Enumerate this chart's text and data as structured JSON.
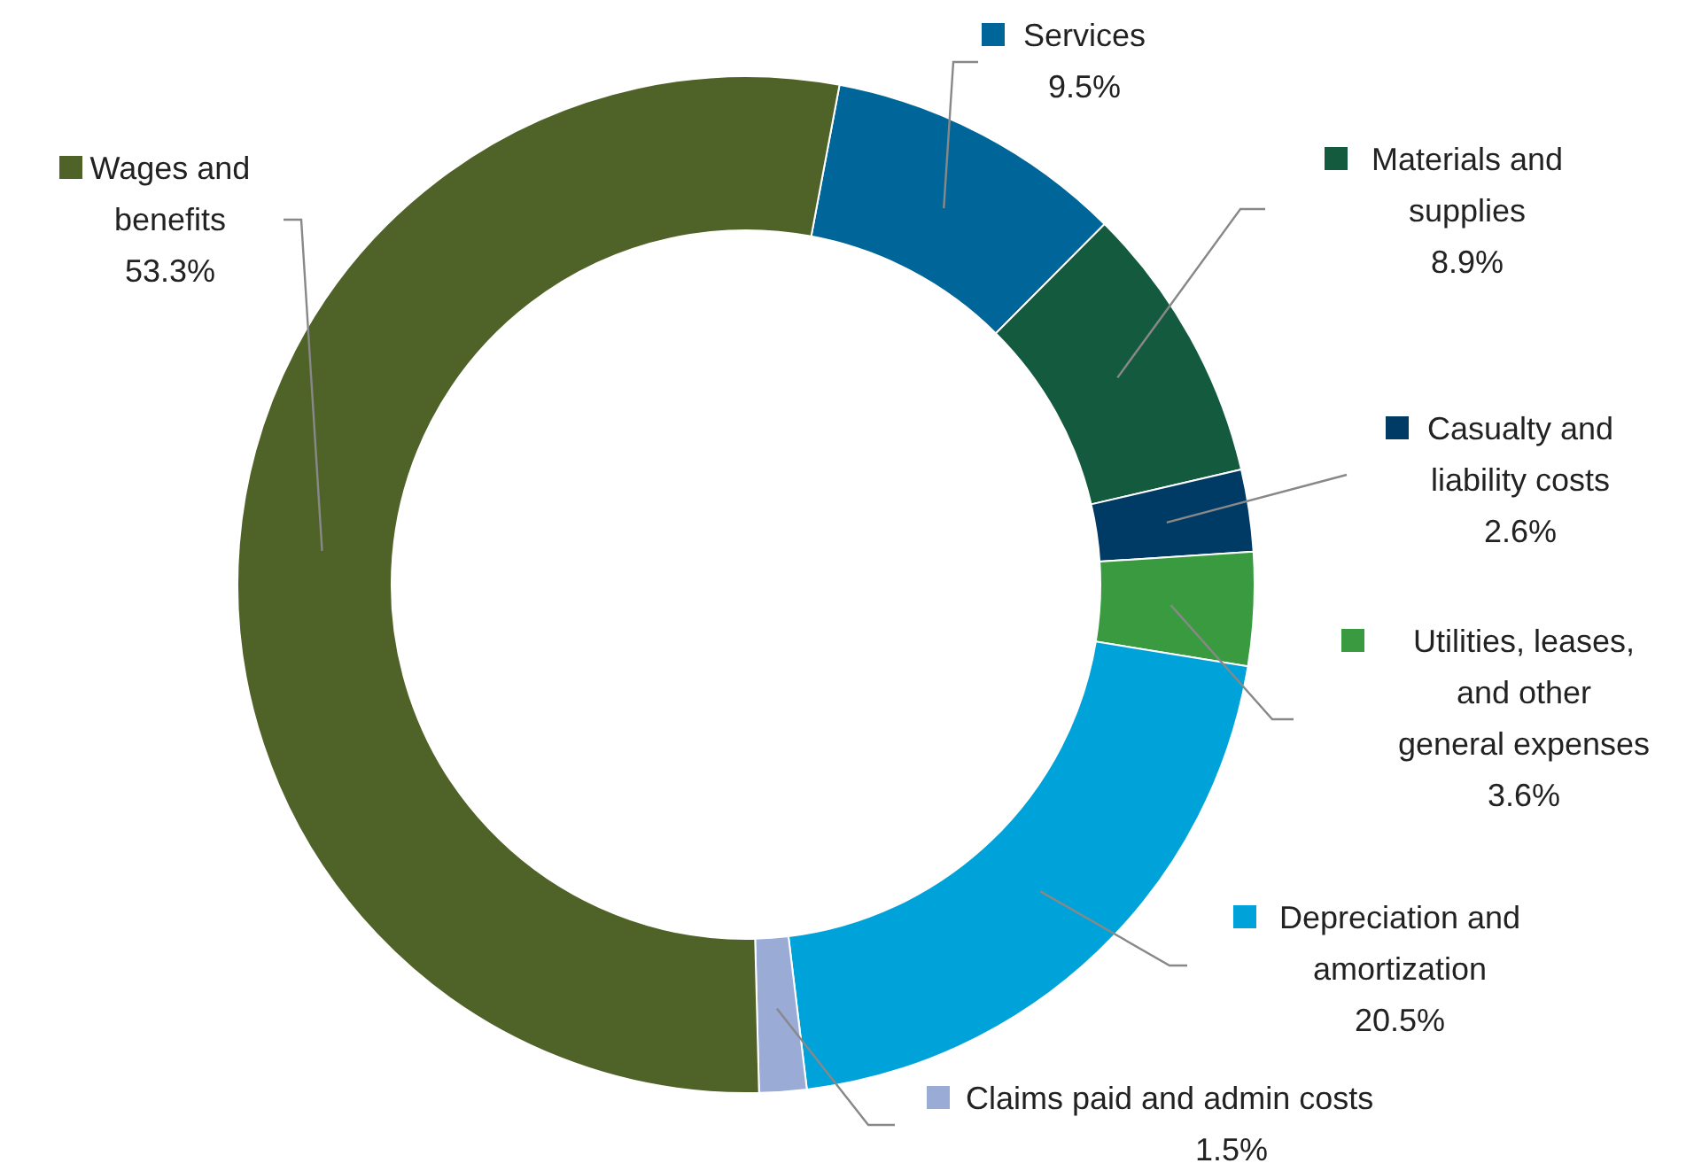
{
  "chart_data": {
    "type": "donut",
    "categories": [
      "Services",
      "Materials and supplies",
      "Casualty and liability costs",
      "Utilities, leases, and other general expenses",
      "Depreciation and amortization",
      "Claims paid and admin costs",
      "Wages and benefits"
    ],
    "values": [
      9.5,
      8.9,
      2.6,
      3.6,
      20.5,
      1.5,
      53.3
    ],
    "colors": [
      "#006699",
      "#145a3f",
      "#003b66",
      "#3a9a3f",
      "#00a3d9",
      "#9aabd6",
      "#4f6228"
    ],
    "value_labels": [
      "9.5%",
      "8.9%",
      "2.6%",
      "3.6%",
      "20.5%",
      "1.5%",
      "53.3%"
    ],
    "legend": "right"
  }
}
